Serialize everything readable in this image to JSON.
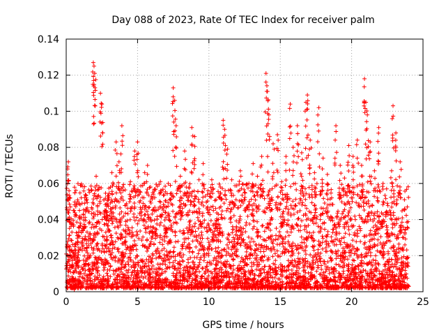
{
  "chart_data": {
    "type": "scatter",
    "title": "Day 088 of 2023, Rate Of TEC Index for receiver palm",
    "xlabel": "GPS time / hours",
    "ylabel": "ROTI / TECUs",
    "xlim": [
      0,
      25
    ],
    "ylim": [
      0,
      0.14
    ],
    "xticks": [
      0,
      5,
      10,
      15,
      20,
      25
    ],
    "xtick_labels": [
      "0",
      "5",
      "10",
      "15",
      "20",
      "25"
    ],
    "yticks": [
      0,
      0.02,
      0.04,
      0.06,
      0.08,
      0.1,
      0.12,
      0.14
    ],
    "ytick_labels": [
      "0",
      "0.02",
      "0.04",
      "0.06",
      "0.08",
      "0.1",
      "0.12",
      "0.14"
    ],
    "grid": true,
    "marker": "+",
    "color": "#ff0000",
    "series": [
      {
        "name": "ROTI",
        "x": [
          0.1,
          0.15,
          0.2,
          0.3,
          0.4,
          0.5,
          0.6,
          0.8,
          1.0,
          1.2,
          1.4,
          1.6,
          1.9,
          1.95,
          2.0,
          2.1,
          2.3,
          2.4,
          2.5,
          2.8,
          3.0,
          3.2,
          3.5,
          3.7,
          3.9,
          4.2,
          4.5,
          4.8,
          5.0,
          5.2,
          5.5,
          5.7,
          6.0,
          6.3,
          6.6,
          7.0,
          7.3,
          7.5,
          7.6,
          7.7,
          8.0,
          8.3,
          8.6,
          8.8,
          9.0,
          9.3,
          9.6,
          9.9,
          10.2,
          10.5,
          10.8,
          11.0,
          11.1,
          11.3,
          11.6,
          11.9,
          12.2,
          12.5,
          12.8,
          13.1,
          13.4,
          13.7,
          14.0,
          14.1,
          14.2,
          14.5,
          14.8,
          15.1,
          15.4,
          15.7,
          15.9,
          16.2,
          16.5,
          16.8,
          16.9,
          17.1,
          17.4,
          17.7,
          18.0,
          18.3,
          18.6,
          18.9,
          19.2,
          19.5,
          19.8,
          20.1,
          20.4,
          20.7,
          20.9,
          21.0,
          21.1,
          21.3,
          21.6,
          21.9,
          22.2,
          22.5,
          22.8,
          22.9,
          23.1,
          23.4,
          23.7,
          23.9
        ],
        "y": [
          0.068,
          0.072,
          0.056,
          0.047,
          0.033,
          0.045,
          0.026,
          0.031,
          0.059,
          0.043,
          0.052,
          0.038,
          0.127,
          0.125,
          0.121,
          0.064,
          0.058,
          0.11,
          0.104,
          0.045,
          0.052,
          0.066,
          0.083,
          0.072,
          0.092,
          0.048,
          0.061,
          0.078,
          0.083,
          0.055,
          0.066,
          0.07,
          0.052,
          0.045,
          0.061,
          0.047,
          0.059,
          0.113,
          0.106,
          0.092,
          0.064,
          0.078,
          0.058,
          0.091,
          0.086,
          0.062,
          0.071,
          0.054,
          0.062,
          0.051,
          0.058,
          0.095,
          0.09,
          0.079,
          0.062,
          0.051,
          0.067,
          0.055,
          0.06,
          0.071,
          0.064,
          0.075,
          0.121,
          0.111,
          0.098,
          0.082,
          0.087,
          0.061,
          0.075,
          0.104,
          0.08,
          0.092,
          0.077,
          0.105,
          0.109,
          0.084,
          0.066,
          0.102,
          0.074,
          0.065,
          0.052,
          0.092,
          0.07,
          0.063,
          0.081,
          0.075,
          0.084,
          0.07,
          0.118,
          0.105,
          0.098,
          0.083,
          0.067,
          0.091,
          0.06,
          0.049,
          0.067,
          0.103,
          0.088,
          0.072,
          0.051,
          0.047
        ]
      }
    ],
    "dense_band": {
      "description_range_y": [
        0.002,
        0.04
      ],
      "x_range": [
        0,
        24
      ]
    }
  }
}
